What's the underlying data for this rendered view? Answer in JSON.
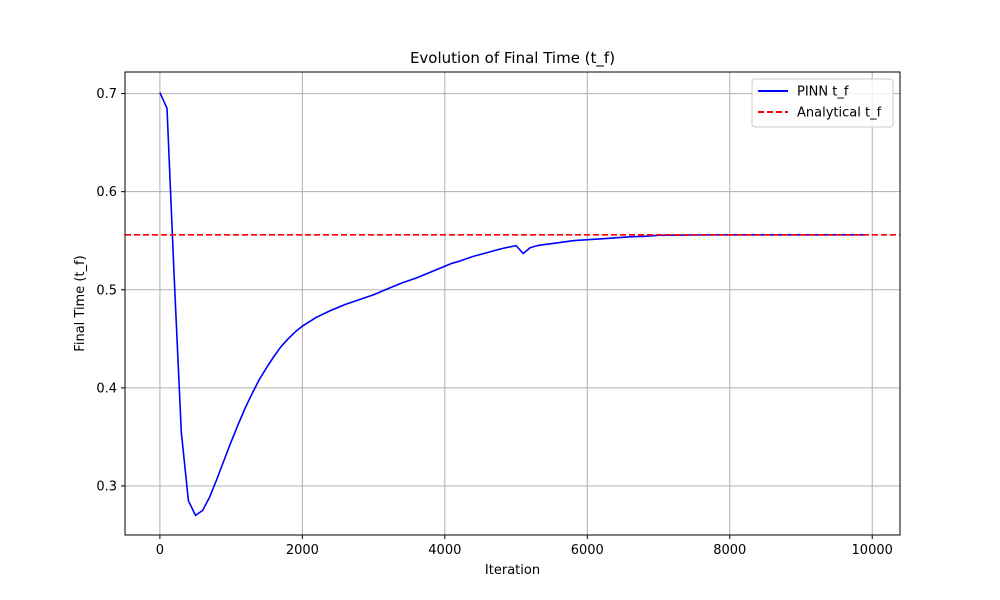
{
  "chart_data": {
    "type": "line",
    "title": "Evolution of Final Time (t_f)",
    "xlabel": "Iteration",
    "ylabel": "Final Time (t_f)",
    "xlim": [
      -490,
      10390
    ],
    "ylim": [
      0.25,
      0.722
    ],
    "xticks": [
      0,
      2000,
      4000,
      6000,
      8000,
      10000
    ],
    "yticks": [
      0.3,
      0.4,
      0.5,
      0.6,
      0.7
    ],
    "xtick_labels": [
      "0",
      "2000",
      "4000",
      "6000",
      "8000",
      "10000"
    ],
    "ytick_labels": [
      "0.3",
      "0.4",
      "0.5",
      "0.6",
      "0.7"
    ],
    "grid": true,
    "legend_position": "top-right",
    "series": [
      {
        "name": "PINN t_f",
        "color": "#0000ff",
        "style": "solid",
        "x": [
          0,
          100,
          200,
          300,
          400,
          500,
          600,
          700,
          800,
          900,
          1000,
          1100,
          1200,
          1300,
          1400,
          1500,
          1600,
          1700,
          1800,
          1900,
          2000,
          2200,
          2400,
          2600,
          2800,
          3000,
          3200,
          3400,
          3600,
          3800,
          4000,
          4100,
          4200,
          4400,
          4600,
          4700,
          4800,
          5000,
          5100,
          5200,
          5300,
          5400,
          5600,
          5800,
          6000,
          6200,
          6400,
          6600,
          6800,
          7000,
          7500,
          8000,
          8500,
          9000,
          9500,
          9900
        ],
        "values": [
          0.701,
          0.685,
          0.515,
          0.355,
          0.285,
          0.27,
          0.275,
          0.289,
          0.307,
          0.326,
          0.345,
          0.363,
          0.38,
          0.395,
          0.409,
          0.421,
          0.432,
          0.442,
          0.45,
          0.457,
          0.463,
          0.472,
          0.479,
          0.485,
          0.49,
          0.495,
          0.501,
          0.507,
          0.512,
          0.518,
          0.524,
          0.527,
          0.529,
          0.534,
          0.538,
          0.54,
          0.542,
          0.545,
          0.537,
          0.543,
          0.545,
          0.546,
          0.548,
          0.55,
          0.551,
          0.552,
          0.553,
          0.554,
          0.5545,
          0.5555,
          0.5558,
          0.556,
          0.556,
          0.556,
          0.556,
          0.556
        ]
      },
      {
        "name": "Analytical t_f",
        "color": "#ff0000",
        "style": "dashed",
        "y": 0.556
      }
    ]
  }
}
